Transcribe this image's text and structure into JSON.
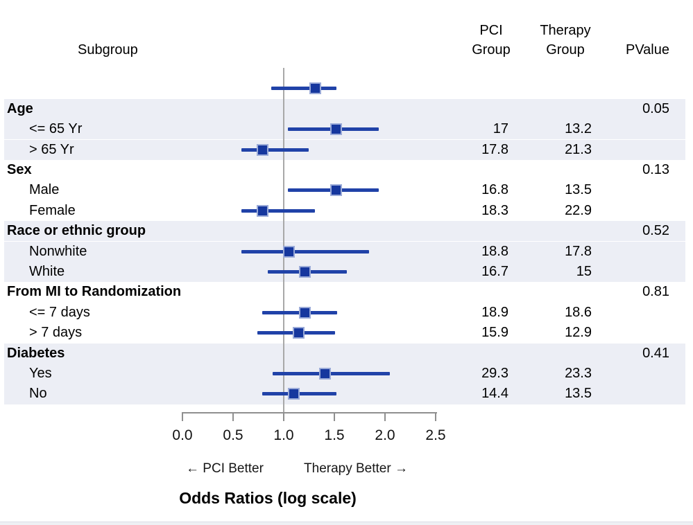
{
  "columns": {
    "subgroup": "Subgroup",
    "pci_line1": "PCI",
    "pci_line2": "Group",
    "therapy_line1": "Therapy",
    "therapy_line2": "Group",
    "pvalue": "PValue"
  },
  "chart_data": {
    "type": "scatter",
    "subtype": "forest-plot",
    "title": "Odds Ratios (log scale)",
    "xlabel_left": "← PCI Better",
    "xlabel_right": "Therapy Better →",
    "x_tick_labels": [
      "0.0",
      "0.5",
      "1.0",
      "1.5",
      "2.0",
      "2.5"
    ],
    "x_tick_values": [
      0,
      0.5,
      1.0,
      1.5,
      2.0,
      2.5
    ],
    "xlim": [
      0,
      2.5
    ],
    "reference_line": 1.0,
    "grid": false,
    "rows": [
      {
        "label": "",
        "indent": 0,
        "bold": false,
        "band": false,
        "or": 1.31,
        "low": 0.88,
        "high": 1.52,
        "pci": "",
        "therapy": "",
        "pvalue": ""
      },
      {
        "label": "Age",
        "indent": 0,
        "bold": true,
        "band": true,
        "pvalue": "0.05",
        "pci": "",
        "therapy": ""
      },
      {
        "label": "<= 65 Yr",
        "indent": 1,
        "bold": false,
        "band": true,
        "or": 1.52,
        "low": 1.04,
        "high": 1.94,
        "pci": "17",
        "therapy": "13.2",
        "pvalue": ""
      },
      {
        "label": "> 65 Yr",
        "indent": 1,
        "bold": false,
        "band": true,
        "or": 0.79,
        "low": 0.58,
        "high": 1.25,
        "pci": "17.8",
        "therapy": "21.3",
        "pvalue": ""
      },
      {
        "label": "Sex",
        "indent": 0,
        "bold": true,
        "band": false,
        "pvalue": "0.13",
        "pci": "",
        "therapy": ""
      },
      {
        "label": "Male",
        "indent": 1,
        "bold": false,
        "band": false,
        "or": 1.52,
        "low": 1.04,
        "high": 1.94,
        "pci": "16.8",
        "therapy": "13.5",
        "pvalue": ""
      },
      {
        "label": "Female",
        "indent": 1,
        "bold": false,
        "band": false,
        "or": 0.79,
        "low": 0.58,
        "high": 1.31,
        "pci": "18.3",
        "therapy": "22.9",
        "pvalue": ""
      },
      {
        "label": "Race or ethnic group",
        "indent": 0,
        "bold": true,
        "band": true,
        "pvalue": "0.52",
        "pci": "",
        "therapy": ""
      },
      {
        "label": "Nonwhite",
        "indent": 1,
        "bold": false,
        "band": true,
        "or": 1.05,
        "low": 0.58,
        "high": 1.84,
        "pci": "18.8",
        "therapy": "17.8",
        "pvalue": ""
      },
      {
        "label": "White",
        "indent": 1,
        "bold": false,
        "band": true,
        "or": 1.21,
        "low": 0.84,
        "high": 1.62,
        "pci": "16.7",
        "therapy": "15",
        "pvalue": ""
      },
      {
        "label": "From MI to Randomization",
        "indent": 0,
        "bold": true,
        "band": false,
        "pvalue": "0.81",
        "pci": "",
        "therapy": ""
      },
      {
        "label": "<= 7 days",
        "indent": 1,
        "bold": false,
        "band": false,
        "or": 1.21,
        "low": 0.79,
        "high": 1.53,
        "pci": "18.9",
        "therapy": "18.6",
        "pvalue": ""
      },
      {
        "label": "> 7 days",
        "indent": 1,
        "bold": false,
        "band": false,
        "or": 1.15,
        "low": 0.74,
        "high": 1.51,
        "pci": "15.9",
        "therapy": "12.9",
        "pvalue": ""
      },
      {
        "label": "Diabetes",
        "indent": 0,
        "bold": true,
        "band": true,
        "pvalue": "0.41",
        "pci": "",
        "therapy": ""
      },
      {
        "label": "Yes",
        "indent": 1,
        "bold": false,
        "band": true,
        "or": 1.41,
        "low": 0.89,
        "high": 2.05,
        "pci": "29.3",
        "therapy": "23.3",
        "pvalue": ""
      },
      {
        "label": "No",
        "indent": 1,
        "bold": false,
        "band": true,
        "or": 1.1,
        "low": 0.79,
        "high": 1.52,
        "pci": "14.4",
        "therapy": "13.5",
        "pvalue": ""
      }
    ]
  },
  "colors": {
    "marker": "#16379e",
    "marker_halo": "#9aaad8",
    "ci_line": "#2042a8",
    "band": "#eceef5",
    "reference_line": "#a8a8a8",
    "axis": "#8f8f8f"
  }
}
